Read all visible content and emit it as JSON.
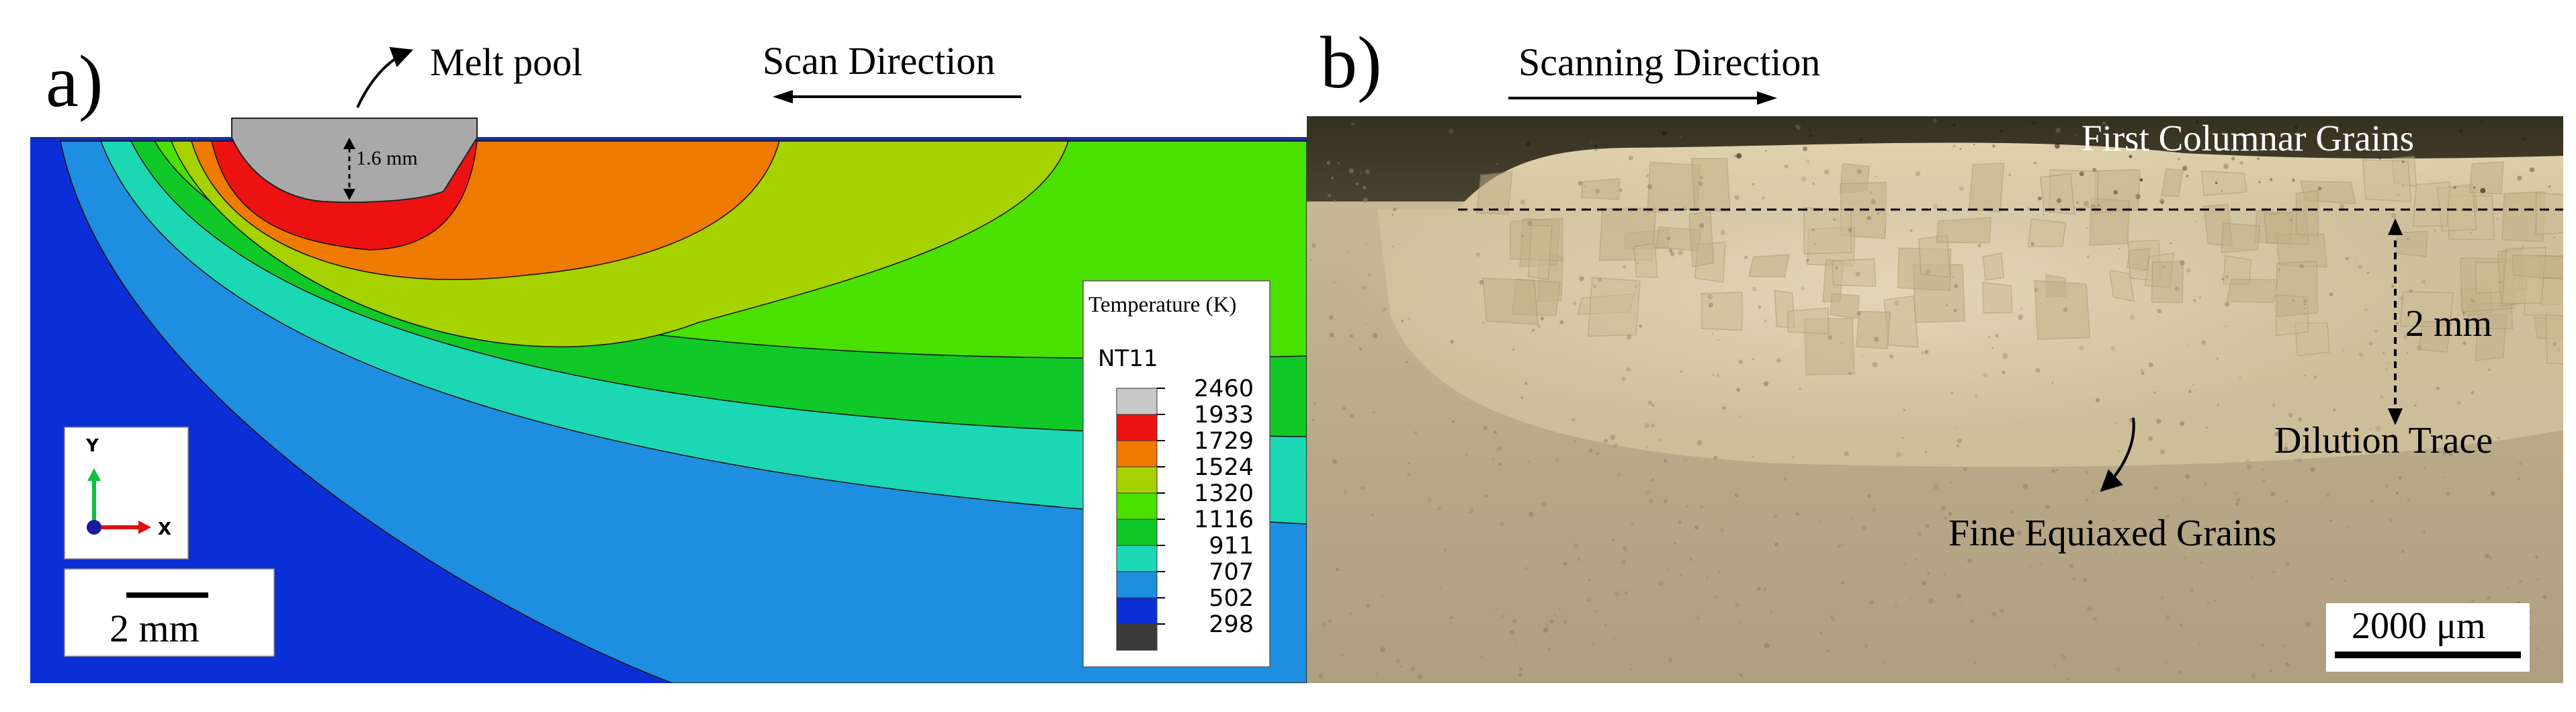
{
  "panel_a": {
    "label": "a)",
    "melt_pool_label": "Melt pool",
    "scan_direction_label": "Scan Direction",
    "depth_label": "1.6 mm",
    "scale_bar_label": "2 mm",
    "axis_triad": {
      "y_label": "Y",
      "x_label": "X"
    },
    "legend": {
      "title": "Temperature (K)",
      "variable": "NT11",
      "levels": [
        "2460",
        "1933",
        "1729",
        "1524",
        "1320",
        "1116",
        "911",
        "707",
        "502",
        "298"
      ],
      "colors": [
        "#c8c8c8",
        "#ee1111",
        "#ee7a00",
        "#a6d200",
        "#4ae000",
        "#10c828",
        "#1cd7b4",
        "#1e8ee0",
        "#0b2fd6",
        "#3a3a3a"
      ]
    },
    "contour_colors": {
      "melt": "#a9a9a9",
      "band_1933": "#ee1111",
      "band_1729": "#ee7a00",
      "band_1524": "#a6d200",
      "band_1320": "#4ae000",
      "band_1116": "#10c828",
      "band_911": "#1cd7b4",
      "band_707": "#1e8ee0",
      "band_502": "#0b2fd6"
    }
  },
  "panel_b": {
    "label": "b)",
    "scanning_direction_label": "Scanning Direction",
    "first_columnar_label": "First Columnar Grains",
    "dimension_label": "2 mm",
    "dilution_trace_label": "Dilution Trace",
    "fine_equiaxed_label": "Fine Equiaxed Grains",
    "scale_bar_label": "2000 μm",
    "colors": {
      "mount": "#3f3a2c",
      "clad": "#d9c9a6",
      "substrate": "#b5a888"
    }
  }
}
